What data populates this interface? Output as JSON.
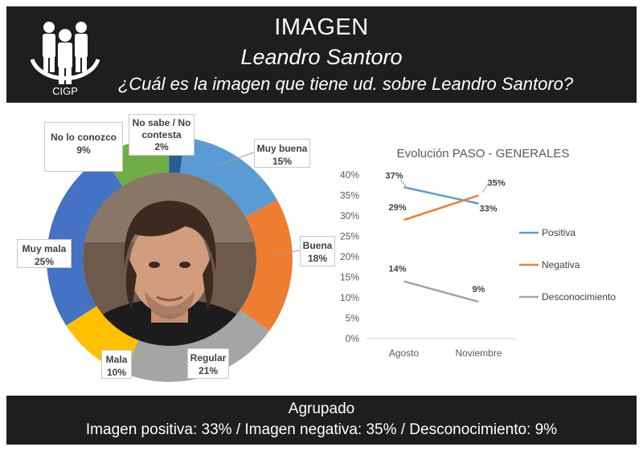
{
  "header": {
    "title": "IMAGEN",
    "name": "Leandro Santoro",
    "question": "¿Cuál es la imagen que tiene ud. sobre Leandro Santoro?",
    "logo_text": "CIGP"
  },
  "footer": {
    "title": "Agrupado",
    "summary": "Imagen positiva: 33% / Imagen negativa: 35% / Desconocimiento: 9%"
  },
  "chart_data": [
    {
      "type": "pie",
      "variant": "donut",
      "categories": [
        "Muy buena",
        "Buena",
        "Regular",
        "Mala",
        "Muy mala",
        "No lo conozco",
        "No sabe / No contesta"
      ],
      "values": [
        15,
        18,
        21,
        10,
        25,
        9,
        2
      ],
      "value_labels": [
        "15%",
        "18%",
        "21%",
        "10%",
        "25%",
        "9%",
        "2%"
      ],
      "colors": [
        "#5b9bd5",
        "#ed7d31",
        "#a5a5a5",
        "#ffc000",
        "#4472c4",
        "#70ad47",
        "#255e91"
      ],
      "center_image": "photo-portrait"
    },
    {
      "type": "line",
      "title": "Evolución PASO - GENERALES",
      "categories": [
        "Agosto",
        "Noviembre"
      ],
      "series": [
        {
          "name": "Positiva",
          "values": [
            37,
            33
          ],
          "labels": [
            "37%",
            "33%"
          ],
          "color": "#5b9bd5"
        },
        {
          "name": "Negativa",
          "values": [
            29,
            35
          ],
          "labels": [
            "29%",
            "35%"
          ],
          "color": "#ed7d31"
        },
        {
          "name": "Desconocimiento",
          "values": [
            14,
            9
          ],
          "labels": [
            "14%",
            "9%"
          ],
          "color": "#a5a5a5"
        }
      ],
      "ylim": [
        0,
        40
      ],
      "yticks": [
        "0%",
        "5%",
        "10%",
        "15%",
        "20%",
        "25%",
        "30%",
        "35%",
        "40%"
      ],
      "grid": false,
      "legend": "right"
    }
  ]
}
